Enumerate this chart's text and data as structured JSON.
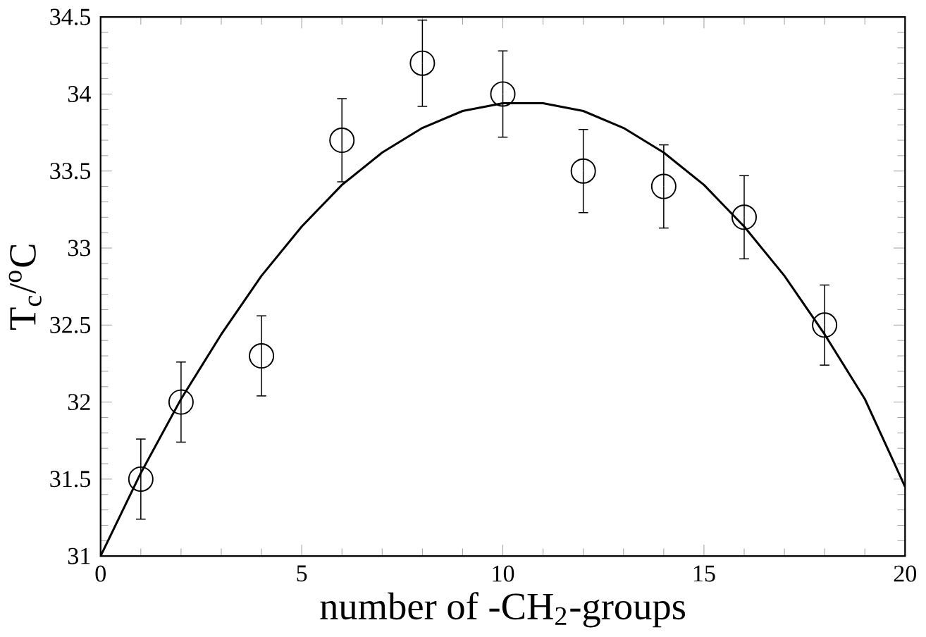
{
  "chart_data": {
    "type": "scatter",
    "xlabel": "number of -CH$_{2}$-groups",
    "ylabel": "T$_{c}$/$^{o}$C",
    "xlim": [
      0,
      20
    ],
    "ylim": [
      31,
      34.5
    ],
    "xticks": [
      0,
      5,
      10,
      15,
      20
    ],
    "yticks": [
      31,
      31.5,
      32,
      32.5,
      33,
      33.5,
      34,
      34.5
    ],
    "grid": false,
    "series": [
      {
        "color": "#000000",
        "marker": "circle",
        "x": [
          1,
          2,
          4,
          6,
          8,
          10,
          12,
          14,
          16,
          18
        ],
        "values": [
          31.5,
          32.0,
          32.3,
          33.7,
          34.2,
          34.0,
          33.5,
          33.4,
          33.2,
          32.5
        ],
        "errors": [
          0.26,
          0.26,
          0.26,
          0.27,
          0.28,
          0.28,
          0.27,
          0.27,
          0.27,
          0.26
        ]
      },
      {
        "type": "line",
        "color": "#000000",
        "marker": "none",
        "line_style": "solid",
        "x": [
          0,
          1,
          2,
          3,
          4,
          5,
          6,
          7,
          8,
          9,
          10,
          11,
          12,
          13,
          14,
          15,
          16,
          17,
          18,
          19,
          20
        ],
        "values": [
          31.0,
          31.54,
          32.02,
          32.44,
          32.82,
          33.14,
          33.41,
          33.62,
          33.78,
          33.89,
          33.94,
          33.94,
          33.89,
          33.78,
          33.62,
          33.41,
          33.14,
          32.82,
          32.44,
          32.02,
          31.45
        ]
      }
    ]
  }
}
